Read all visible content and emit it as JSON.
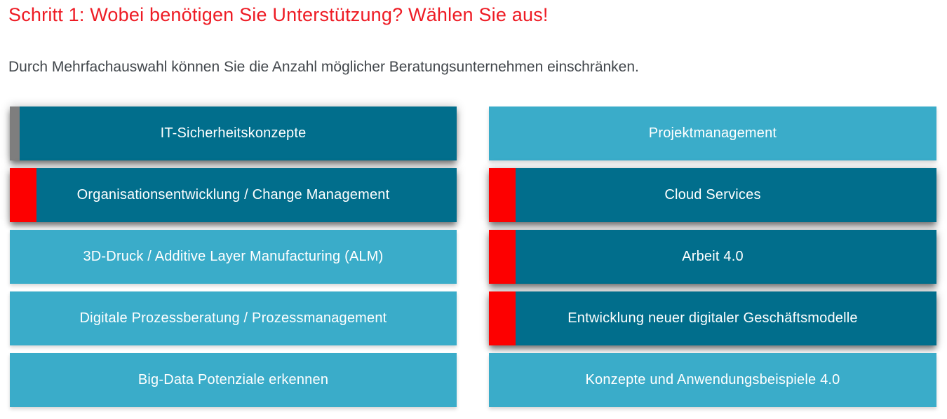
{
  "page": {
    "title": "Schritt 1: Wobei benötigen Sie Unterstützung? Wählen Sie aus!",
    "subtitle": "Durch Mehrfachauswahl können Sie die Anzahl möglicher Beratungsunternehmen einschränken."
  },
  "colors": {
    "title_red": "#ee1b24",
    "subtitle_gray": "#41464b",
    "button_dark_teal": "#016e8c",
    "button_light_teal": "#3aacc9",
    "selected_bar_red": "#fd0000",
    "indicator_bar_gray": "#7e7e7e",
    "button_text": "#ffffff"
  },
  "options": {
    "left": {
      "items": [
        {
          "label": "IT-Sicherheitskonzepte",
          "state": "dark gray-bar"
        },
        {
          "label": "Organisationsentwicklung / Change Management",
          "state": "dark red-bar"
        },
        {
          "label": "3D-Druck / Additive Layer Manufacturing (ALM)",
          "state": "light"
        },
        {
          "label": "Digitale Prozessberatung / Prozessmanagement",
          "state": "light"
        },
        {
          "label": "Big-Data Potenziale erkennen",
          "state": "light"
        }
      ]
    },
    "right": {
      "items": [
        {
          "label": "Projektmanagement",
          "state": "light"
        },
        {
          "label": "Cloud Services",
          "state": "dark red-bar"
        },
        {
          "label": "Arbeit 4.0",
          "state": "dark red-bar"
        },
        {
          "label": "Entwicklung neuer digitaler Geschäftsmodelle",
          "state": "dark red-bar"
        },
        {
          "label": "Konzepte und Anwendungsbeispiele 4.0",
          "state": "light"
        }
      ]
    }
  }
}
